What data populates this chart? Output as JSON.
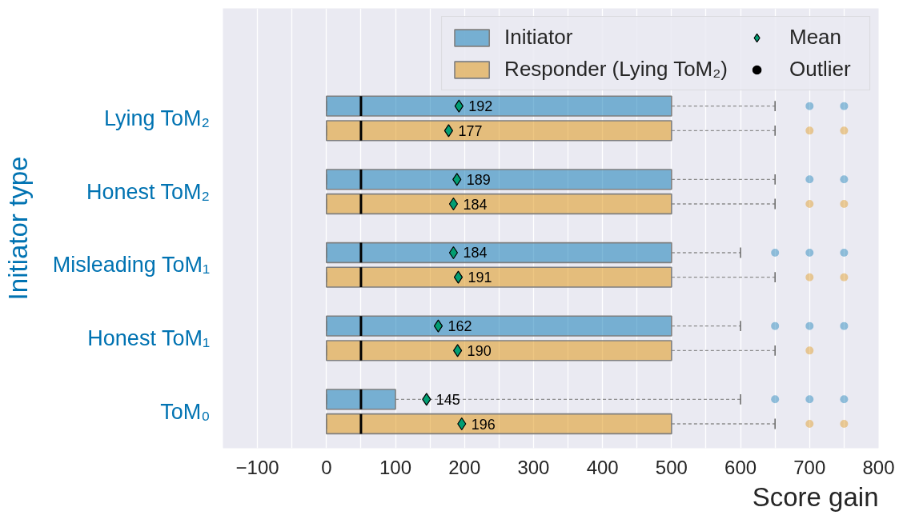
{
  "chart_data": {
    "type": "box",
    "orientation": "horizontal",
    "xlabel": "Score gain",
    "ylabel": "Initiator type",
    "categories": [
      "Lying ToM₂",
      "Honest ToM₂",
      "Misleading ToM₁",
      "Honest ToM₁",
      "ToM₀"
    ],
    "series": [
      {
        "name": "Initiator",
        "color": "#0173b2",
        "boxes": [
          {
            "low": 0,
            "q1": 0,
            "median": 50,
            "q3": 500,
            "high": 650,
            "outliers": [
              700,
              750
            ]
          },
          {
            "low": 0,
            "q1": 0,
            "median": 50,
            "q3": 500,
            "high": 650,
            "outliers": [
              700,
              750
            ]
          },
          {
            "low": 0,
            "q1": 0,
            "median": 50,
            "q3": 500,
            "high": 600,
            "outliers": [
              650,
              700,
              750
            ]
          },
          {
            "low": 0,
            "q1": 0,
            "median": 50,
            "q3": 500,
            "high": 600,
            "outliers": [
              650,
              700,
              750
            ]
          },
          {
            "low": 0,
            "q1": 0,
            "median": 50,
            "q3": 100,
            "high": 600,
            "outliers": [
              650,
              700,
              750
            ]
          }
        ]
      },
      {
        "name": "Responder (Lying ToM₂)",
        "color": "#de8f05",
        "boxes": [
          {
            "low": 0,
            "q1": 0,
            "median": 50,
            "q3": 500,
            "high": 650,
            "outliers": [
              700,
              750
            ]
          },
          {
            "low": 0,
            "q1": 0,
            "median": 50,
            "q3": 500,
            "high": 650,
            "outliers": [
              700,
              750
            ]
          },
          {
            "low": 0,
            "q1": 0,
            "median": 50,
            "q3": 500,
            "high": 650,
            "outliers": [
              700,
              750
            ]
          },
          {
            "low": 0,
            "q1": 0,
            "median": 50,
            "q3": 500,
            "high": 650,
            "outliers": [
              700
            ]
          },
          {
            "low": 0,
            "q1": 0,
            "median": 50,
            "q3": 500,
            "high": 650,
            "outliers": [
              700,
              750
            ]
          }
        ]
      },
      {
        "name": "Mean",
        "type": "scatter",
        "color": "#029e73",
        "marker": "diamond",
        "values": [
          192,
          189,
          184,
          162,
          145
        ],
        "value_labels": [
          "192",
          "189",
          "184",
          "162",
          "145"
        ]
      },
      {
        "type": "scatter",
        "color": "#029e73",
        "marker": "diamond",
        "values": [
          177,
          184,
          191,
          190,
          196
        ],
        "value_labels": [
          "177",
          "184",
          "191",
          "190",
          "196"
        ]
      },
      {
        "name": "Outlier",
        "type": "scatter",
        "color": "#000000",
        "marker": "circle",
        "values": [
          null,
          null,
          null,
          null,
          null
        ]
      }
    ],
    "xlim": [
      -150,
      800
    ],
    "xticks": [
      {
        "value": -100,
        "label": "−100"
      },
      {
        "value": -50,
        "label": null
      },
      0,
      {
        "value": 50,
        "label": null
      },
      100,
      {
        "value": 150,
        "label": null
      },
      200,
      {
        "value": 250,
        "label": null
      },
      300,
      {
        "value": 350,
        "label": null
      },
      400,
      {
        "value": 450,
        "label": null
      },
      500,
      {
        "value": 550,
        "label": null
      },
      600,
      {
        "value": 650,
        "label": null
      },
      700,
      {
        "value": 750,
        "label": null
      },
      800
    ],
    "grid": "x",
    "legend": "top right"
  }
}
